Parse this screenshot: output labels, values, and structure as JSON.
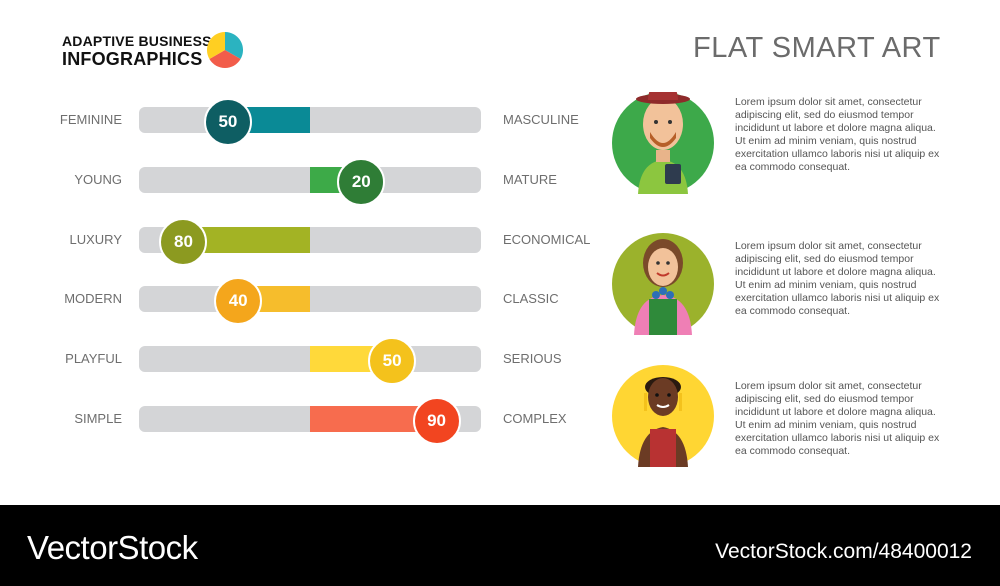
{
  "header": {
    "brand_line1": "ADAPTIVE BUSINESS",
    "brand_line2": "INFOGRAPHICS",
    "title": "FLAT SMART ART"
  },
  "scales": [
    {
      "left": "FEMININE",
      "right": "MASCULINE",
      "value": "50",
      "position": 0.26,
      "color": "#0a8a96",
      "bubble": "#0e5e63"
    },
    {
      "left": "YOUNG",
      "right": "MATURE",
      "value": "20",
      "position": 0.65,
      "color": "#3daa48",
      "bubble": "#2f7d36"
    },
    {
      "left": "LUXURY",
      "right": "ECONOMICAL",
      "value": "80",
      "position": 0.13,
      "color": "#a3b324",
      "bubble": "#8c9a20"
    },
    {
      "left": "MODERN",
      "right": "CLASSIC",
      "value": "40",
      "position": 0.29,
      "color": "#f6bd2c",
      "bubble": "#f4a61c"
    },
    {
      "left": "PLAYFUL",
      "right": "SERIOUS",
      "value": "50",
      "position": 0.74,
      "color": "#ffd93a",
      "bubble": "#f4c21c"
    },
    {
      "left": "SIMPLE",
      "right": "COMPLEX",
      "value": "90",
      "position": 0.87,
      "color": "#f76c4e",
      "bubble": "#f24520"
    }
  ],
  "people": [
    {
      "icon": "man-with-hat-icon",
      "bg": "#3da94a",
      "text": "Lorem ipsum dolor sit amet, consectetur adipiscing elit, sed do eiusmod tempor incididunt ut labore et dolore magna aliqua. Ut enim ad minim veniam, quis nostrud exercitation ullamco laboris nisi ut aliquip ex ea commodo consequat."
    },
    {
      "icon": "gardener-woman-icon",
      "bg": "#9bb22c",
      "text": "Lorem ipsum dolor sit amet, consectetur adipiscing elit, sed do eiusmod tempor incididunt ut labore et dolore magna aliqua. Ut enim ad minim veniam, quis nostrud exercitation ullamco laboris nisi ut aliquip ex ea commodo consequat."
    },
    {
      "icon": "woman-with-apron-icon",
      "bg": "#ffd633",
      "text": "Lorem ipsum dolor sit amet, consectetur adipiscing elit, sed do eiusmod tempor incididunt ut labore et dolore magna aliqua. Ut enim ad minim veniam, quis nostrud exercitation ullamco laboris nisi ut aliquip ex ea commodo consequat."
    }
  ],
  "footer": {
    "logo": "VectorStock",
    "id": "VectorStock.com/48400012"
  }
}
